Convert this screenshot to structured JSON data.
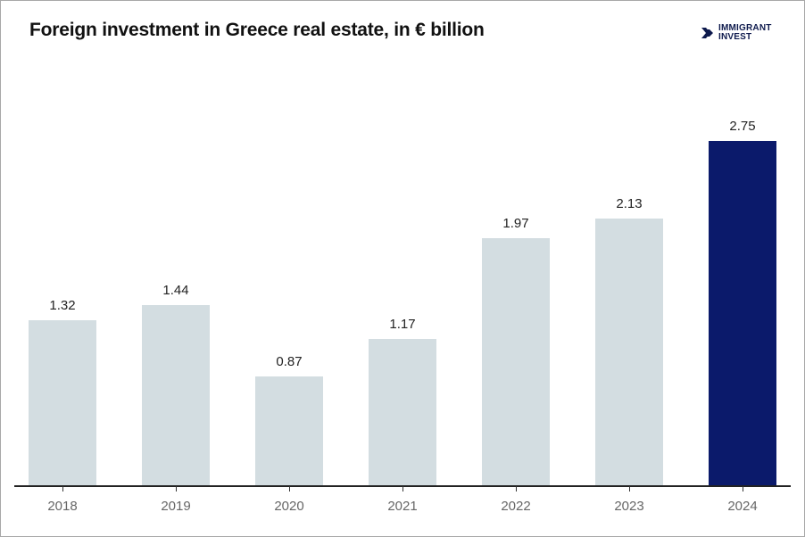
{
  "header": {
    "title": "Foreign investment in Greece real estate, in € billion",
    "logo_line1": "IMMIGRANT",
    "logo_line2": "INVEST"
  },
  "colors": {
    "bar_default": "#d3dde1",
    "bar_highlight": "#0b1a6b",
    "logo": "#0e1a4d"
  },
  "chart_data": {
    "type": "bar",
    "title": "Foreign investment in Greece real estate, in € billion",
    "xlabel": "",
    "ylabel": "",
    "categories": [
      "2018",
      "2019",
      "2020",
      "2021",
      "2022",
      "2023",
      "2024"
    ],
    "values": [
      1.32,
      1.44,
      0.87,
      1.17,
      1.97,
      2.13,
      2.75
    ],
    "value_labels": [
      "1.32",
      "1.44",
      "0.87",
      "1.17",
      "1.97",
      "2.13",
      "2.75"
    ],
    "highlight": "2024",
    "ylim": [
      0,
      3
    ],
    "grid": false,
    "legend": "none",
    "y_axis_visible": false
  }
}
